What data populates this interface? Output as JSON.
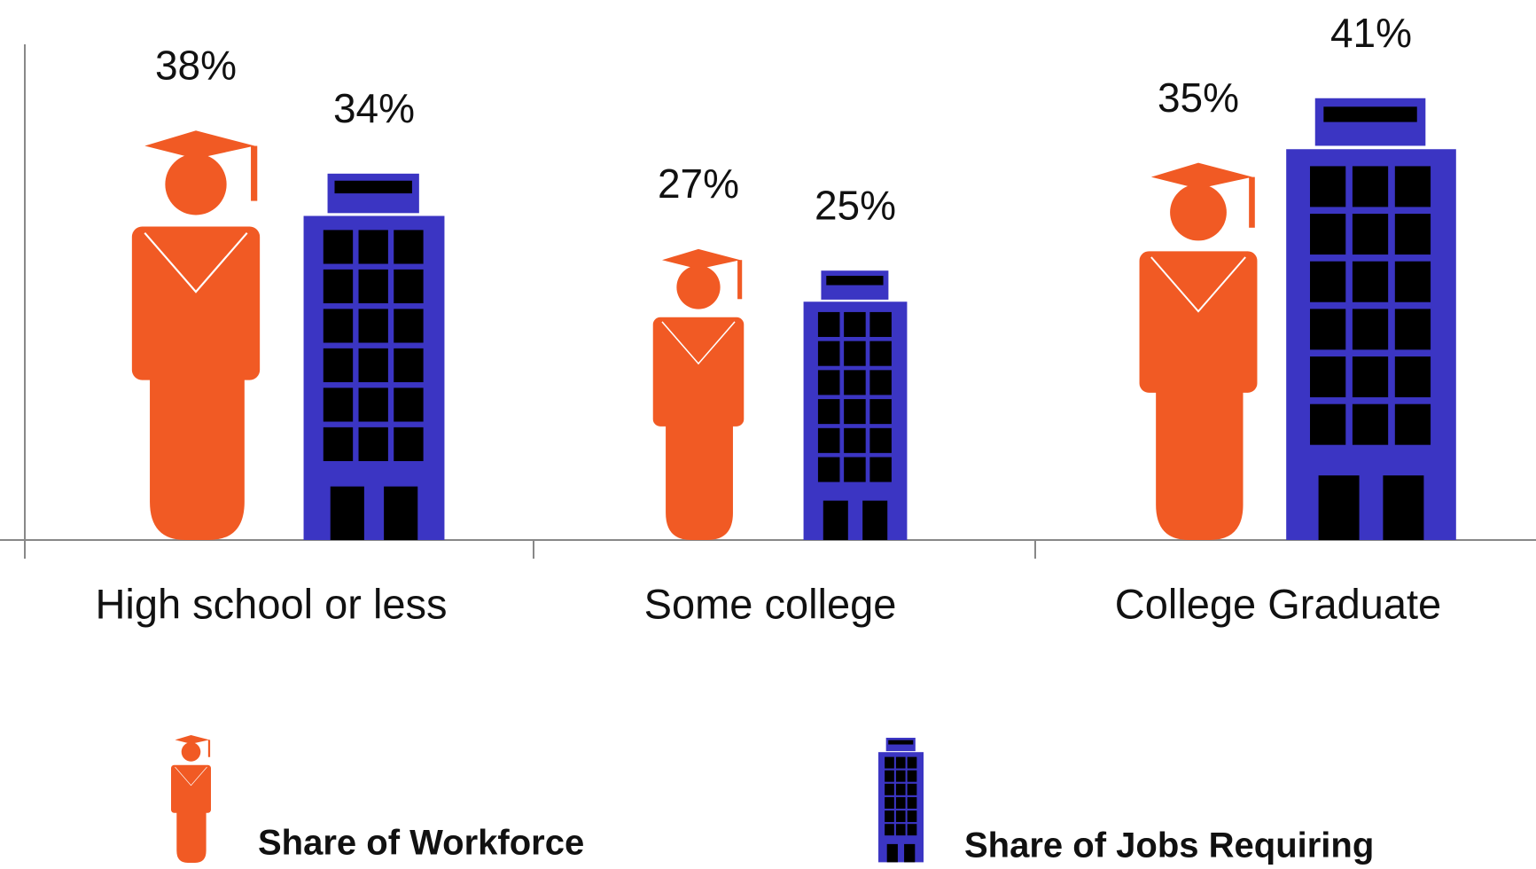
{
  "chart_data": {
    "type": "pictograph",
    "categories": [
      "High school or less",
      "Some college",
      "College Graduate"
    ],
    "series": [
      {
        "name": "Share of Workforce",
        "color": "#f15a24",
        "values": [
          38,
          27,
          35
        ],
        "value_labels": [
          "38%",
          "27%",
          "35%"
        ]
      },
      {
        "name": "Share of Jobs Requiring",
        "color": "#3b35c3",
        "values": [
          34,
          25,
          41
        ],
        "value_labels": [
          "34%",
          "25%",
          "41%"
        ]
      }
    ],
    "ylim": [
      0,
      46
    ]
  }
}
